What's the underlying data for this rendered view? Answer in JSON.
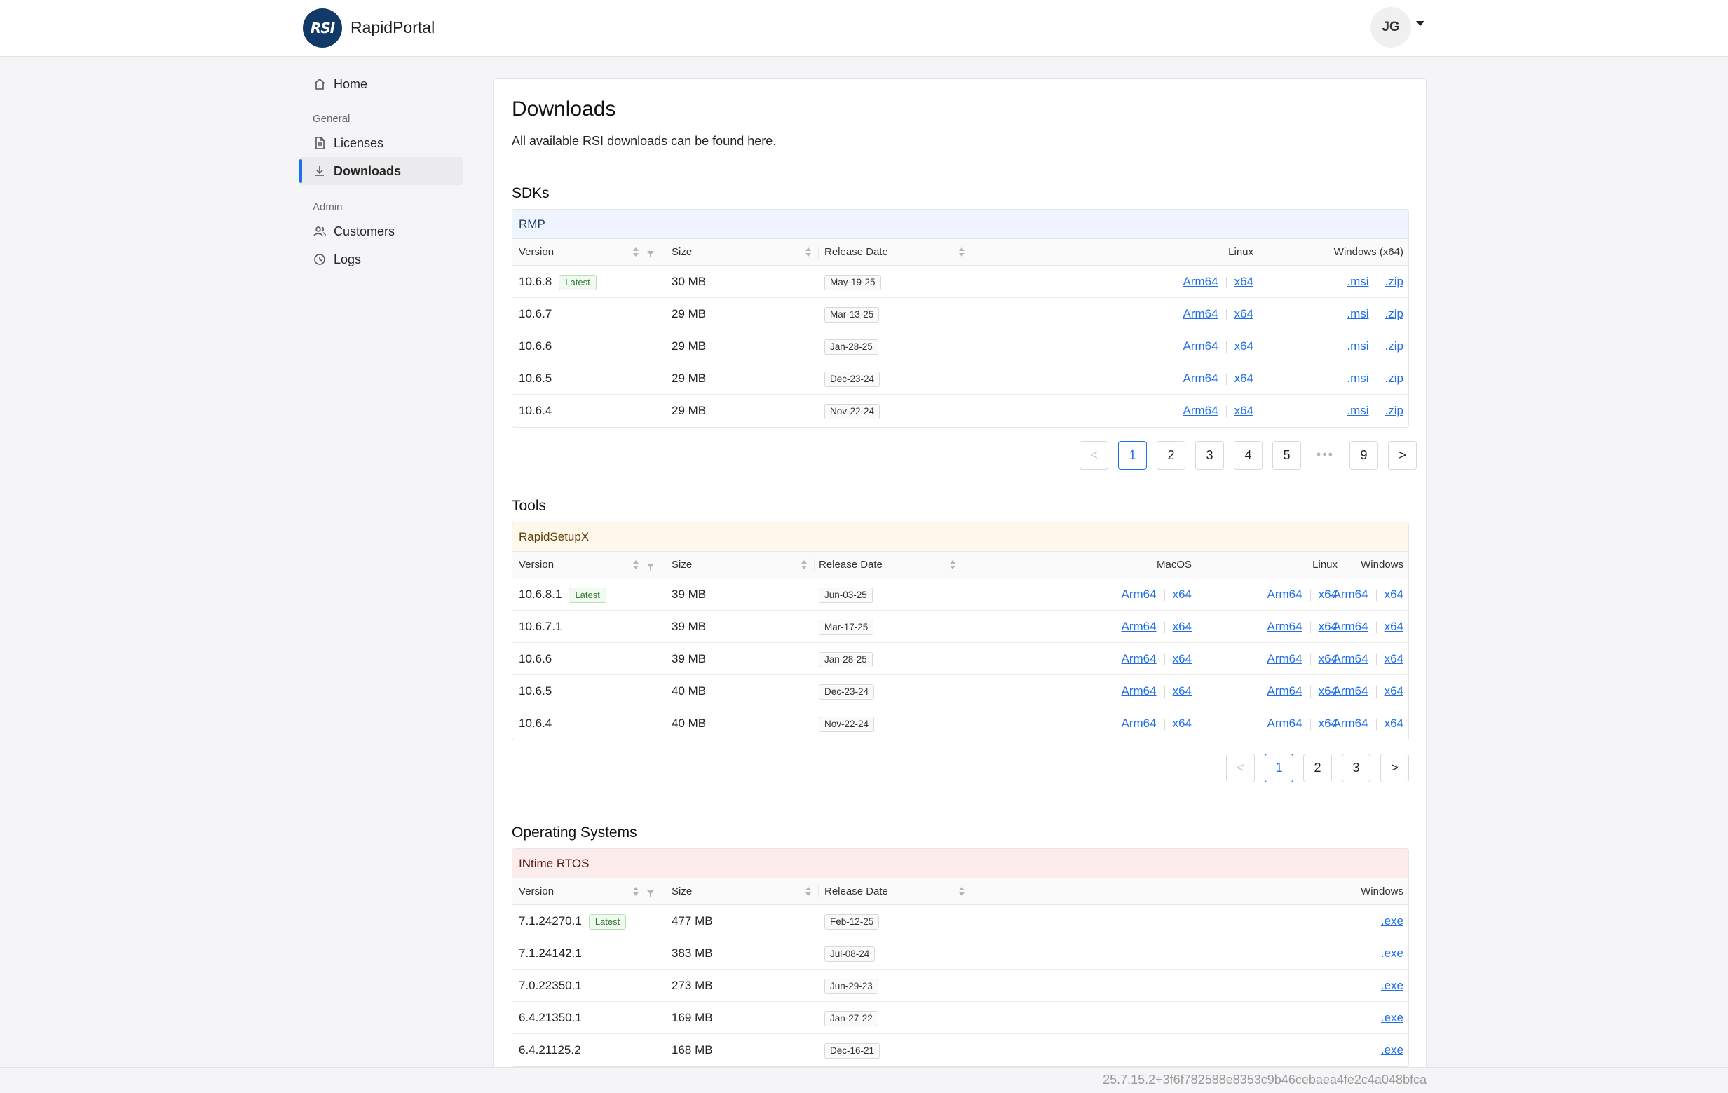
{
  "header": {
    "logo_text": "RSI",
    "app_name": "RapidPortal",
    "user_initials": "JG"
  },
  "sidebar": {
    "home": "Home",
    "general_label": "General",
    "licenses": "Licenses",
    "downloads": "Downloads",
    "admin_label": "Admin",
    "customers": "Customers",
    "logs": "Logs"
  },
  "page": {
    "title": "Downloads",
    "subtitle": "All available RSI downloads can be found here."
  },
  "columns": {
    "version": "Version",
    "size": "Size",
    "release_date": "Release Date"
  },
  "sdks": {
    "title": "SDKs",
    "product": "RMP",
    "headers": {
      "linux": "Linux",
      "windows": "Windows (x64)"
    },
    "rows": [
      {
        "version": "10.6.8",
        "latest": "Latest",
        "size": "30 MB",
        "date": "May-19-25",
        "l1": "Arm64",
        "l2": "x64",
        "w1": ".msi",
        "w2": ".zip"
      },
      {
        "version": "10.6.7",
        "size": "29 MB",
        "date": "Mar-13-25",
        "l1": "Arm64",
        "l2": "x64",
        "w1": ".msi",
        "w2": ".zip"
      },
      {
        "version": "10.6.6",
        "size": "29 MB",
        "date": "Jan-28-25",
        "l1": "Arm64",
        "l2": "x64",
        "w1": ".msi",
        "w2": ".zip"
      },
      {
        "version": "10.6.5",
        "size": "29 MB",
        "date": "Dec-23-24",
        "l1": "Arm64",
        "l2": "x64",
        "w1": ".msi",
        "w2": ".zip"
      },
      {
        "version": "10.6.4",
        "size": "29 MB",
        "date": "Nov-22-24",
        "l1": "Arm64",
        "l2": "x64",
        "w1": ".msi",
        "w2": ".zip"
      }
    ],
    "pagination": {
      "prev": "<",
      "pages": [
        "1",
        "2",
        "3",
        "4",
        "5"
      ],
      "ellipsis": "•••",
      "last": "9",
      "next": ">",
      "current": "1"
    }
  },
  "tools": {
    "title": "Tools",
    "product": "RapidSetupX",
    "headers": {
      "macos": "MacOS",
      "linux": "Linux",
      "windows": "Windows"
    },
    "rows": [
      {
        "version": "10.6.8.1",
        "latest": "Latest",
        "size": "39 MB",
        "date": "Jun-03-25",
        "a": "Arm64",
        "b": "x64"
      },
      {
        "version": "10.6.7.1",
        "size": "39 MB",
        "date": "Mar-17-25",
        "a": "Arm64",
        "b": "x64"
      },
      {
        "version": "10.6.6",
        "size": "39 MB",
        "date": "Jan-28-25",
        "a": "Arm64",
        "b": "x64"
      },
      {
        "version": "10.6.5",
        "size": "40 MB",
        "date": "Dec-23-24",
        "a": "Arm64",
        "b": "x64"
      },
      {
        "version": "10.6.4",
        "size": "40 MB",
        "date": "Nov-22-24",
        "a": "Arm64",
        "b": "x64"
      }
    ],
    "pagination": {
      "prev": "<",
      "pages": [
        "1",
        "2",
        "3"
      ],
      "next": ">",
      "current": "1"
    }
  },
  "os": {
    "title": "Operating Systems",
    "product": "INtime RTOS",
    "headers": {
      "windows": "Windows"
    },
    "rows": [
      {
        "version": "7.1.24270.1",
        "latest": "Latest",
        "size": "477 MB",
        "date": "Feb-12-25",
        "w": ".exe"
      },
      {
        "version": "7.1.24142.1",
        "size": "383 MB",
        "date": "Jul-08-24",
        "w": ".exe"
      },
      {
        "version": "7.0.22350.1",
        "size": "273 MB",
        "date": "Jun-29-23",
        "w": ".exe"
      },
      {
        "version": "6.4.21350.1",
        "size": "169 MB",
        "date": "Jan-27-22",
        "w": ".exe"
      },
      {
        "version": "6.4.21125.2",
        "size": "168 MB",
        "date": "Dec-16-21",
        "w": ".exe"
      }
    ]
  },
  "footer": {
    "build": "25.7.15.2+3f6f782588e8353c9b46cebaea4fe2c4a048bfca"
  }
}
